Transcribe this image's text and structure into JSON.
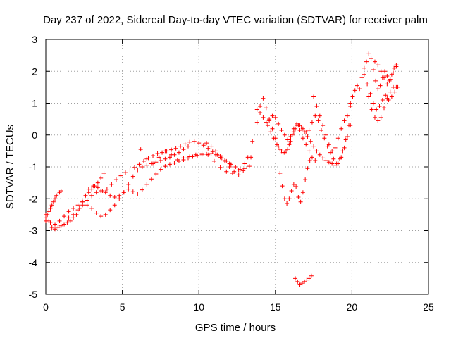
{
  "chart_data": {
    "type": "scatter",
    "title": "Day 237 of 2022, Sidereal Day-to-day VTEC variation (SDTVAR) for receiver palm",
    "xlabel": "GPS time / hours",
    "ylabel": "SDTVAR / TECUs",
    "xlim": [
      0,
      25
    ],
    "ylim": [
      -5,
      3
    ],
    "xticks": [
      0,
      5,
      10,
      15,
      20,
      25
    ],
    "yticks": [
      -5,
      -4,
      -3,
      -2,
      -1,
      0,
      1,
      2,
      3
    ],
    "grid": true,
    "marker": "plus",
    "color": "#ff0000",
    "series": [
      {
        "x": [
          0.0,
          0.2,
          0.4,
          0.6,
          0.8,
          1.0,
          1.2,
          1.4,
          1.6,
          1.8,
          2.0,
          2.2,
          2.4,
          2.6,
          2.8,
          3.0,
          3.2,
          3.4,
          3.6,
          3.8
        ],
        "y": [
          -2.5,
          -2.7,
          -2.9,
          -2.95,
          -2.9,
          -2.85,
          -2.8,
          -2.75,
          -2.7,
          -2.6,
          -2.5,
          -2.3,
          -2.1,
          -1.9,
          -1.8,
          -1.7,
          -1.6,
          -1.5,
          -1.35,
          -1.2
        ]
      },
      {
        "x": [
          0.0,
          0.1,
          0.2,
          0.3,
          0.4,
          0.5,
          0.6,
          0.7,
          0.8,
          0.9,
          1.0
        ],
        "y": [
          -2.6,
          -2.5,
          -2.4,
          -2.3,
          -2.2,
          -2.1,
          -2.0,
          -1.9,
          -1.85,
          -1.8,
          -1.75
        ]
      },
      {
        "x": [
          0.0,
          0.3,
          0.6,
          0.9,
          1.2,
          1.5,
          1.8,
          2.1,
          2.4,
          2.7,
          3.0,
          3.3,
          3.6,
          3.9,
          4.2,
          4.5,
          4.8,
          5.1,
          5.4,
          5.7,
          6.0,
          6.3,
          6.6,
          6.9,
          7.2,
          7.5,
          7.8,
          8.1,
          8.4,
          8.7,
          9.0,
          9.3
        ],
        "y": [
          -2.7,
          -2.75,
          -2.8,
          -2.7,
          -2.55,
          -2.4,
          -2.3,
          -2.2,
          -2.1,
          -2.2,
          -2.3,
          -2.45,
          -2.55,
          -2.5,
          -2.35,
          -2.2,
          -2.0,
          -1.8,
          -1.55,
          -1.3,
          -1.1,
          -1.0,
          -0.95,
          -0.9,
          -0.85,
          -0.8,
          -0.75,
          -0.7,
          -0.62,
          -0.55,
          -0.45,
          -0.35
        ]
      },
      {
        "x": [
          1.5,
          1.8,
          2.1,
          2.4,
          2.7,
          3.0,
          3.3,
          3.6,
          3.9,
          4.2,
          4.5,
          4.8,
          5.1,
          5.4,
          5.7,
          6.0,
          6.3,
          6.6,
          6.9,
          7.2,
          7.5,
          7.8,
          8.1,
          8.4,
          8.7,
          9.0,
          9.3,
          9.6,
          9.9,
          10.2,
          10.5,
          10.8,
          11.1,
          11.4,
          11.7,
          12.0
        ],
        "y": [
          -2.6,
          -2.5,
          -2.35,
          -2.2,
          -2.05,
          -1.9,
          -1.8,
          -1.75,
          -1.8,
          -1.9,
          -1.95,
          -1.9,
          -1.8,
          -1.7,
          -1.78,
          -1.85,
          -1.72,
          -1.55,
          -1.38,
          -1.22,
          -1.08,
          -0.98,
          -0.92,
          -0.88,
          -0.82,
          -0.78,
          -0.72,
          -0.68,
          -0.64,
          -0.62,
          -0.6,
          -0.58,
          -0.62,
          -0.7,
          -0.8,
          -0.9
        ]
      },
      {
        "x": [
          2.8,
          3.1,
          3.4,
          3.7,
          4.0,
          4.3,
          4.6,
          4.9,
          5.2,
          5.5,
          5.8,
          6.1,
          6.4,
          6.7,
          7.0,
          7.3,
          7.6,
          7.9,
          8.2,
          8.5,
          8.8,
          9.1,
          9.4,
          9.7,
          10.0,
          10.3,
          10.6,
          10.9,
          11.2,
          11.5,
          11.8,
          12.1,
          12.4,
          12.7,
          13.0,
          13.3
        ],
        "y": [
          -1.7,
          -1.6,
          -1.65,
          -1.75,
          -1.7,
          -1.55,
          -1.4,
          -1.28,
          -1.18,
          -1.1,
          -1.02,
          -0.92,
          -0.82,
          -0.72,
          -0.65,
          -0.58,
          -0.55,
          -0.5,
          -0.46,
          -0.42,
          -0.35,
          -0.28,
          -0.22,
          -0.2,
          -0.25,
          -0.32,
          -0.42,
          -0.52,
          -0.62,
          -0.72,
          -0.82,
          -0.92,
          -1.0,
          -1.08,
          -1.05,
          -0.98
        ]
      },
      {
        "x": [
          6.2,
          6.6,
          7.0,
          7.4,
          7.8,
          8.2,
          8.6,
          9.0,
          9.4,
          9.8,
          10.2,
          10.6,
          11.0,
          11.4,
          11.8,
          12.2,
          12.6,
          13.0,
          13.4
        ],
        "y": [
          -0.45,
          -0.75,
          -0.9,
          -0.7,
          -0.5,
          -0.62,
          -0.78,
          -0.72,
          -0.68,
          -0.62,
          -0.58,
          -0.62,
          -0.82,
          -1.02,
          -1.15,
          -1.2,
          -1.1,
          -0.9,
          -0.7
        ]
      },
      {
        "x": [
          10.5,
          10.8,
          11.1,
          11.4,
          11.7,
          12.0,
          12.3,
          12.6,
          12.9,
          13.2,
          13.5,
          13.8,
          14.0,
          14.2,
          14.4,
          14.6,
          14.8,
          15.0,
          15.2,
          15.4,
          15.6,
          15.8,
          16.0,
          16.2,
          16.4,
          16.6,
          16.8,
          17.0,
          17.2,
          17.4,
          17.6
        ],
        "y": [
          -0.25,
          -0.35,
          -0.5,
          -0.65,
          -0.82,
          -1.0,
          -1.15,
          -1.25,
          -1.12,
          -0.7,
          -0.2,
          0.4,
          0.9,
          1.15,
          0.85,
          0.5,
          0.2,
          -0.1,
          -0.35,
          -0.5,
          -0.55,
          -0.45,
          -0.2,
          0.1,
          0.3,
          0.15,
          -0.1,
          -0.3,
          -0.5,
          -0.7,
          -0.8
        ]
      },
      {
        "x": [
          13.8,
          14.0,
          14.2,
          14.4,
          14.6,
          14.8,
          15.0,
          15.2,
          15.4,
          15.6,
          15.8,
          16.0,
          16.2,
          16.4,
          16.6,
          16.8,
          17.0,
          17.2,
          17.4,
          17.6,
          17.8,
          18.0,
          18.2,
          18.4,
          18.6,
          18.8,
          19.0,
          19.2,
          19.4,
          19.6,
          19.8
        ],
        "y": [
          0.8,
          0.7,
          0.55,
          0.4,
          0.45,
          0.6,
          0.55,
          0.35,
          0.15,
          0.0,
          -0.15,
          -0.05,
          0.2,
          0.35,
          0.3,
          0.2,
          0.1,
          0.15,
          0.4,
          0.6,
          0.45,
          0.15,
          -0.1,
          -0.35,
          -0.55,
          -0.75,
          -0.9,
          -0.75,
          -0.5,
          -0.15,
          0.3
        ]
      },
      {
        "x": [
          14.5,
          14.7,
          14.9,
          15.1,
          15.3,
          15.5,
          15.7,
          15.9,
          16.1,
          16.3,
          16.5,
          16.7,
          16.9,
          17.1,
          17.3,
          17.5,
          17.7,
          17.9,
          18.1,
          18.3,
          18.5,
          18.7,
          18.9,
          19.1,
          19.3,
          19.5,
          19.7,
          19.9
        ],
        "y": [
          0.3,
          0.1,
          -0.1,
          -0.3,
          -0.45,
          -0.55,
          -0.5,
          -0.3,
          0.0,
          0.2,
          0.3,
          0.25,
          0.1,
          -0.05,
          -0.2,
          -0.35,
          -0.5,
          -0.62,
          -0.72,
          -0.8,
          -0.85,
          -0.9,
          -0.95,
          -0.9,
          -0.7,
          -0.4,
          -0.05,
          0.3
        ]
      },
      {
        "x": [
          15.3,
          15.45,
          15.6,
          15.75,
          15.9,
          16.05,
          16.2,
          16.35,
          16.5,
          16.65,
          16.8,
          16.95,
          17.1,
          17.25
        ],
        "y": [
          -1.2,
          -1.6,
          -2.0,
          -2.15,
          -2.0,
          -1.75,
          -1.55,
          -1.62,
          -1.95,
          -2.1,
          -1.8,
          -1.4,
          -1.05,
          -0.8
        ]
      },
      {
        "x": [
          16.3,
          16.45,
          16.6,
          16.75,
          16.9,
          17.05,
          17.2,
          17.35
        ],
        "y": [
          -4.5,
          -4.6,
          -4.7,
          -4.65,
          -4.6,
          -4.55,
          -4.5,
          -4.42
        ]
      },
      {
        "x": [
          17.5,
          17.7,
          17.9,
          18.1,
          18.3,
          18.5,
          18.7,
          18.9,
          19.1,
          19.3,
          19.5,
          19.7,
          19.9
        ],
        "y": [
          1.2,
          0.9,
          0.6,
          0.3,
          0.0,
          -0.3,
          -0.5,
          -0.4,
          -0.1,
          0.2,
          0.45,
          0.6,
          0.9
        ]
      },
      {
        "x": [
          19.9,
          20.05,
          20.2,
          20.35,
          20.5,
          20.65,
          20.8,
          20.95,
          21.1,
          21.25,
          21.4,
          21.55,
          21.7,
          21.85,
          22.0,
          22.15,
          22.3,
          22.45,
          22.6,
          22.75,
          22.9
        ],
        "y": [
          1.0,
          1.2,
          1.4,
          1.55,
          1.45,
          1.8,
          2.1,
          2.3,
          2.55,
          2.4,
          2.05,
          1.7,
          1.45,
          1.55,
          1.8,
          2.0,
          1.85,
          1.7,
          1.9,
          2.1,
          2.2
        ]
      },
      {
        "x": [
          20.8,
          21.0,
          21.2,
          21.4,
          21.6,
          21.8,
          22.0,
          22.2,
          22.4,
          22.6,
          22.8,
          23.0
        ],
        "y": [
          1.9,
          1.6,
          1.3,
          1.0,
          0.8,
          0.9,
          1.1,
          1.25,
          1.1,
          1.2,
          1.35,
          1.5
        ]
      },
      {
        "x": [
          21.1,
          21.3,
          21.5,
          21.7,
          21.9,
          22.1,
          22.3,
          22.5,
          22.7,
          22.9
        ],
        "y": [
          1.2,
          0.8,
          0.55,
          0.45,
          0.55,
          0.85,
          1.15,
          1.35,
          1.5,
          1.5
        ]
      },
      {
        "x": [
          21.5,
          21.7,
          21.9,
          22.1,
          22.3,
          22.5,
          22.7,
          22.9
        ],
        "y": [
          2.3,
          2.2,
          2.0,
          1.8,
          1.6,
          1.75,
          1.95,
          2.15
        ]
      }
    ]
  }
}
